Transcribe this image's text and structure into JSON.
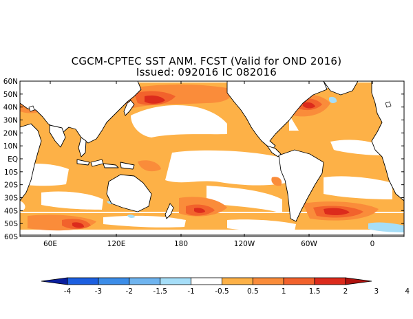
{
  "title_line1": "CGCM-CPTEC SST ANM. FCST  (Valid for OND 2016)",
  "title_line2": "Issued:  092016 IC 082016",
  "lat_labels": [
    "60N",
    "50N",
    "40N",
    "30N",
    "20N",
    "10N",
    "EQ",
    "10S",
    "20S",
    "30S",
    "40S",
    "50S",
    "60S"
  ],
  "lon_labels": [
    "60E",
    "120E",
    "180",
    "120W",
    "60W",
    "0"
  ],
  "colorbar": {
    "labels": [
      "-4",
      "-3",
      "-2",
      "-1.5",
      "-1",
      "-0.5",
      "0.5",
      "1",
      "1.5",
      "2",
      "3",
      "4"
    ],
    "colors": [
      "#0a1e9e",
      "#1c5fe0",
      "#3c8de8",
      "#6fb4ef",
      "#a6def8",
      "#ffffff",
      "#fdb147",
      "#fa8c3a",
      "#f2622c",
      "#dc2b1c",
      "#b0120e"
    ]
  },
  "colors": {
    "ocean_neutral": "#ffffff",
    "anom_light": "#fdb147",
    "anom_mid": "#fa8c3a",
    "anom_strong": "#f2622c",
    "anom_vstrong": "#dc2b1c",
    "anom_max": "#b0120e",
    "cool_light": "#a6def8",
    "coast": "#000000"
  }
}
